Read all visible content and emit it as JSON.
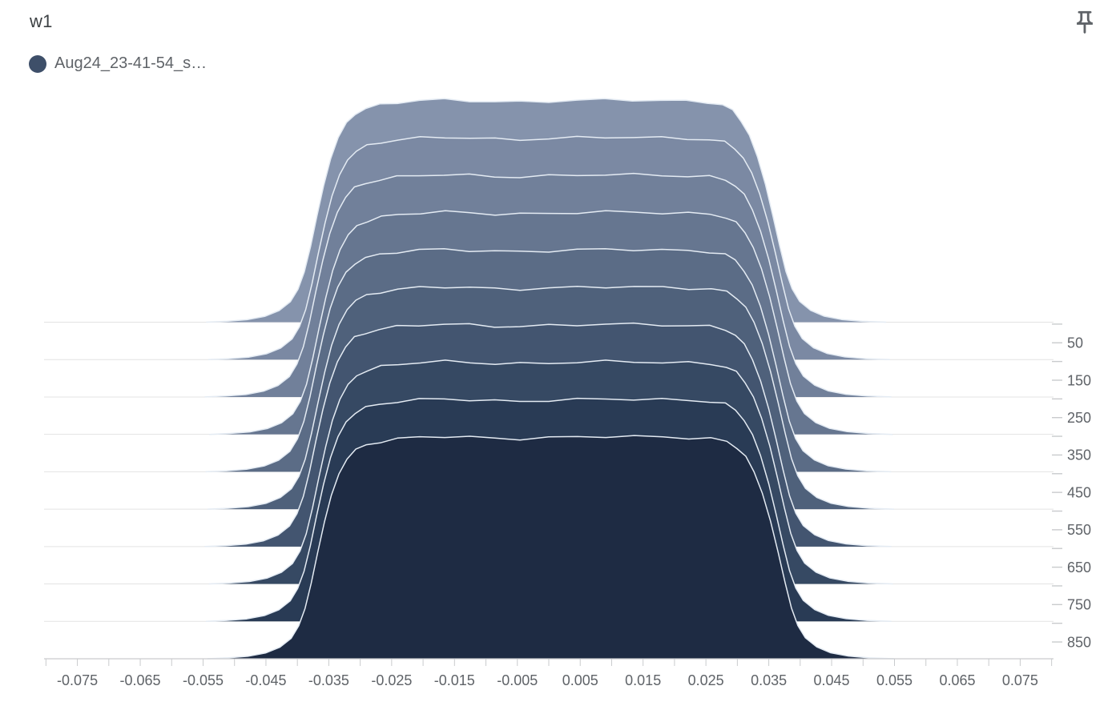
{
  "card": {
    "title": "w1",
    "pin_icon": "push-pin"
  },
  "legend": {
    "items": [
      {
        "label": "Aug24_23-41-54_s…",
        "color": "#3E4F69"
      }
    ]
  },
  "chart_data": {
    "type": "area",
    "variant": "tensorboard-histogram-offset-ridgeline",
    "title": "w1",
    "x_domain": [
      -0.0803,
      0.0803
    ],
    "x_ticks": {
      "min": -0.08,
      "max": 0.08,
      "step": 0.005
    },
    "x_labels": [
      {
        "v": -0.075,
        "text": "-0.075"
      },
      {
        "v": -0.065,
        "text": "-0.065"
      },
      {
        "v": -0.055,
        "text": "-0.055"
      },
      {
        "v": -0.045,
        "text": "-0.045"
      },
      {
        "v": -0.035,
        "text": "-0.035"
      },
      {
        "v": -0.025,
        "text": "-0.025"
      },
      {
        "v": -0.015,
        "text": "-0.015"
      },
      {
        "v": -0.005,
        "text": "-0.005"
      },
      {
        "v": 0.005,
        "text": "0.005"
      },
      {
        "v": 0.015,
        "text": "0.015"
      },
      {
        "v": 0.025,
        "text": "0.025"
      },
      {
        "v": 0.035,
        "text": "0.035"
      },
      {
        "v": 0.045,
        "text": "0.045"
      },
      {
        "v": 0.055,
        "text": "0.055"
      },
      {
        "v": 0.065,
        "text": "0.065"
      },
      {
        "v": 0.075,
        "text": "0.075"
      }
    ],
    "y_ticks": {
      "min": 0,
      "max": 850,
      "step": 50
    },
    "y_labels": [
      "50",
      "150",
      "250",
      "350",
      "450",
      "550",
      "650",
      "750",
      "850"
    ],
    "steps": [
      0,
      100,
      200,
      300,
      400,
      500,
      600,
      700,
      800,
      900
    ],
    "colors": [
      "#8593AC",
      "#7B89A3",
      "#71809A",
      "#667690",
      "#5B6C86",
      "#4F617B",
      "#435570",
      "#364963",
      "#293B55",
      "#1E2B43"
    ],
    "outline_color": "#E4EBF3",
    "grid_color": "#E3E3E3",
    "axis_color": "#C9CBCD",
    "label_color": "#5F6368",
    "plateau_wobble": 0.006,
    "base_profile": [
      [
        -0.0545,
        0.0
      ],
      [
        -0.0512,
        0.004
      ],
      [
        -0.048,
        0.011
      ],
      [
        -0.0452,
        0.026
      ],
      [
        -0.0429,
        0.052
      ],
      [
        -0.0411,
        0.092
      ],
      [
        -0.0399,
        0.148
      ],
      [
        -0.0389,
        0.225
      ],
      [
        -0.0379,
        0.34
      ],
      [
        -0.0369,
        0.475
      ],
      [
        -0.0358,
        0.615
      ],
      [
        -0.0347,
        0.735
      ],
      [
        -0.0335,
        0.83
      ],
      [
        -0.0322,
        0.897
      ],
      [
        -0.0308,
        0.938
      ],
      [
        -0.0291,
        0.96
      ],
      [
        -0.0269,
        0.976
      ],
      [
        -0.0241,
        0.988
      ],
      [
        -0.0206,
        0.996
      ],
      [
        -0.0166,
        1.0
      ],
      [
        -0.0126,
        0.996
      ],
      [
        -0.0086,
        0.99
      ],
      [
        -0.0046,
        0.989
      ],
      [
        0.0,
        0.993
      ],
      [
        0.0045,
        0.997
      ],
      [
        0.009,
        1.0
      ],
      [
        0.0135,
        0.999
      ],
      [
        0.018,
        0.996
      ],
      [
        0.0221,
        0.993
      ],
      [
        0.0256,
        0.989
      ],
      [
        0.0281,
        0.976
      ],
      [
        0.0297,
        0.95
      ],
      [
        0.0311,
        0.906
      ],
      [
        0.0324,
        0.84
      ],
      [
        0.0337,
        0.744
      ],
      [
        0.035,
        0.618
      ],
      [
        0.0362,
        0.478
      ],
      [
        0.0373,
        0.342
      ],
      [
        0.0383,
        0.228
      ],
      [
        0.0393,
        0.15
      ],
      [
        0.0405,
        0.094
      ],
      [
        0.0423,
        0.053
      ],
      [
        0.0445,
        0.027
      ],
      [
        0.0473,
        0.012
      ],
      [
        0.0506,
        0.004
      ],
      [
        0.0545,
        0.0
      ]
    ],
    "series": [
      {
        "step": 0,
        "scale_left": 1.0,
        "scale_right": 0.985
      },
      {
        "step": 100,
        "scale_left": 0.994,
        "scale_right": 0.996
      },
      {
        "step": 200,
        "scale_left": 1.004,
        "scale_right": 1.0
      },
      {
        "step": 300,
        "scale_left": 0.991,
        "scale_right": 1.004
      },
      {
        "step": 400,
        "scale_left": 1.002,
        "scale_right": 0.999
      },
      {
        "step": 500,
        "scale_left": 0.996,
        "scale_right": 1.008
      },
      {
        "step": 600,
        "scale_left": 1.004,
        "scale_right": 1.0
      },
      {
        "step": 700,
        "scale_left": 0.992,
        "scale_right": 1.005
      },
      {
        "step": 800,
        "scale_left": 1.001,
        "scale_right": 1.0
      },
      {
        "step": 900,
        "scale_left": 0.997,
        "scale_right": 1.008
      }
    ]
  }
}
